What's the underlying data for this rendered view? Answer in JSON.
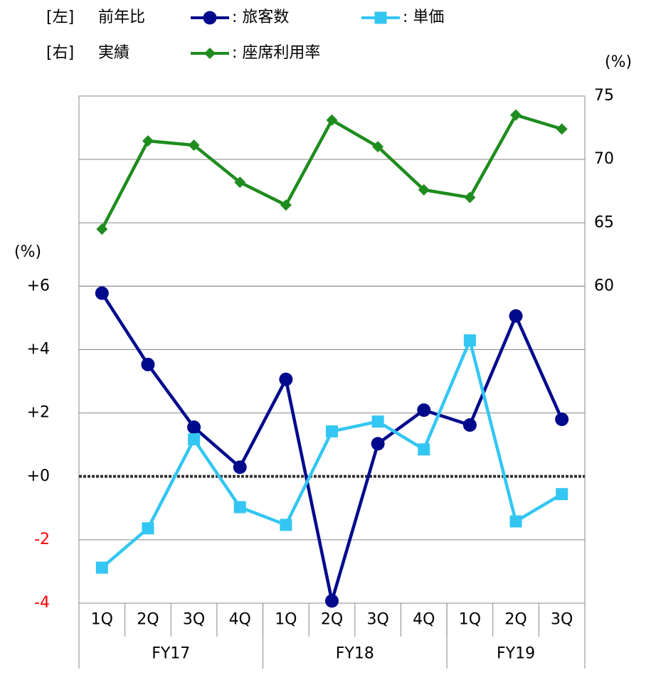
{
  "chart_data": {
    "type": "line",
    "categories": [
      "1Q",
      "2Q",
      "3Q",
      "4Q",
      "1Q",
      "2Q",
      "3Q",
      "4Q",
      "1Q",
      "2Q",
      "3Q"
    ],
    "groups": [
      {
        "label": "FY17",
        "span": 4
      },
      {
        "label": "FY18",
        "span": 4
      },
      {
        "label": "FY19",
        "span": 3
      }
    ],
    "ylabel": "(%)",
    "y2label": "(%)",
    "ylim": [
      -4,
      12
    ],
    "yticks": [
      -4,
      -2,
      {
        "value": 0,
        "label": "+0"
      },
      {
        "value": 2,
        "label": "+2"
      },
      {
        "value": 4,
        "label": "+4"
      },
      {
        "value": 6,
        "label": "+6"
      }
    ],
    "negative_tick_color": "#ff0000",
    "y2lim": [
      35,
      75
    ],
    "y2ticks": [
      60,
      65,
      70,
      75
    ],
    "grid": true,
    "zero_line": "dotted",
    "legend_rows": {
      "y": {
        "side": "[左]",
        "title": "前年比"
      },
      "y2": {
        "side": "[右]",
        "title": "実績"
      }
    },
    "series": [
      {
        "name": ": 旅客数",
        "color": "#000a8c",
        "marker": "circle",
        "axis": "y",
        "values": [
          5.78,
          3.53,
          1.55,
          0.29,
          3.06,
          -3.93,
          1.03,
          2.09,
          1.62,
          5.06,
          1.8
        ]
      },
      {
        "name": ": 単価",
        "color": "#33c6f2",
        "marker": "square",
        "axis": "y",
        "values": [
          -2.88,
          -1.64,
          1.17,
          -0.97,
          -1.53,
          1.42,
          1.73,
          0.85,
          4.29,
          -1.42,
          -0.56
        ]
      },
      {
        "name": ": 座席利用率",
        "color": "#1e8c1e",
        "marker": "diamond",
        "axis": "y2",
        "values": [
          64.5,
          71.46,
          71.12,
          68.2,
          66.4,
          73.1,
          71.0,
          67.6,
          67.0,
          73.5,
          72.4
        ]
      }
    ]
  }
}
